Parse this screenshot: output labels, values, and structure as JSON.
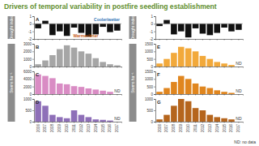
{
  "title": "Drivers of temporal variability in postfire seedling establishment",
  "note": "ND: no data",
  "chart_data": [
    {
      "type": "bar",
      "title": "A",
      "ylabel": "Drought index",
      "color": "#111111",
      "categories": [
        "2006",
        "2007",
        "2008",
        "2009",
        "2010",
        "2011",
        "2012",
        "2013",
        "2014",
        "2015",
        "2016",
        "2017"
      ],
      "values": [
        -0.6,
        0.4,
        -1.5,
        -1.0,
        -1.6,
        -0.5,
        -1.2,
        -1.7,
        -1.4,
        -0.4,
        -1.1,
        -0.9
      ],
      "ylim": [
        -2,
        1
      ],
      "yticks": [
        -2,
        -1,
        0,
        1
      ],
      "tick_labels": "y",
      "annotations": [
        {
          "text": "Cooler/wetter",
          "color": "#2e75b6"
        },
        {
          "text": "Warmer/drier",
          "color": "#c55a11"
        }
      ]
    },
    {
      "type": "bar",
      "title": "B",
      "color": "#a6a6a6",
      "categories": [
        "2006",
        "2007",
        "2008",
        "2009",
        "2010",
        "2011",
        "2012",
        "2013",
        "2014",
        "2015",
        "2016",
        "2017"
      ],
      "values": [
        300,
        800,
        1500,
        2300,
        2800,
        2500,
        2000,
        1700,
        1100,
        600,
        300,
        150
      ],
      "ylim": [
        0,
        3000
      ],
      "yticks": [
        0,
        1000,
        2000,
        3000
      ],
      "tick_labels": "y"
    },
    {
      "type": "bar",
      "title": "C",
      "ylabel": "Stems ha⁻¹",
      "color": "#d98cc4",
      "categories": [
        "2006",
        "2007",
        "2008",
        "2009",
        "2010",
        "2011",
        "2012",
        "2013",
        "2014",
        "2015",
        "2016",
        "2017"
      ],
      "values": [
        5200,
        4800,
        4200,
        2800,
        2600,
        2100,
        1900,
        1500,
        1200,
        900,
        600,
        null
      ],
      "ylim": [
        0,
        6000
      ],
      "yticks": [
        0,
        2000,
        4000,
        6000
      ],
      "tick_labels": "y",
      "annotations": [
        {
          "text": "ND"
        }
      ]
    },
    {
      "type": "bar",
      "title": "D",
      "color": "#8e6fb8",
      "categories": [
        "2006",
        "2007",
        "2008",
        "2009",
        "2010",
        "2011",
        "2012",
        "2013",
        "2014",
        "2015",
        "2016",
        "2017"
      ],
      "values": [
        900,
        700,
        300,
        200,
        150,
        500,
        300,
        200,
        100,
        80,
        50,
        null
      ],
      "ylim": [
        0,
        1000
      ],
      "yticks": [
        0,
        500,
        1000
      ],
      "annotations": [
        {
          "text": "ND"
        }
      ]
    },
    {
      "type": "bar",
      "ylabel": "Drought index",
      "color": "#111111",
      "categories": [
        "2006",
        "2007",
        "2008",
        "2009",
        "2010",
        "2011",
        "2012",
        "2013",
        "2014",
        "2015",
        "2016",
        "2017"
      ],
      "values": [
        -0.3,
        0.5,
        -1.4,
        -1.0,
        -1.8,
        -0.6,
        -1.3,
        -1.5,
        -1.2,
        -0.5,
        -1.0,
        -0.8
      ],
      "ylim": [
        -2,
        1
      ],
      "yticks": [
        -2,
        -1,
        0,
        1
      ],
      "tick_labels": "y"
    },
    {
      "type": "bar",
      "title": "E",
      "color": "#f2a93b",
      "categories": [
        "2006",
        "2007",
        "2008",
        "2009",
        "2010",
        "2011",
        "2012",
        "2013",
        "2014",
        "2015",
        "2016",
        "2017"
      ],
      "values": [
        200,
        500,
        900,
        1300,
        1200,
        1000,
        700,
        500,
        300,
        200,
        100,
        null
      ],
      "ylim": [
        0,
        1500
      ],
      "yticks": [
        0,
        500,
        1000,
        1500
      ],
      "tick_labels": "y",
      "annotations": [
        {
          "text": "ND"
        }
      ]
    },
    {
      "type": "bar",
      "title": "F",
      "ylabel": "Stems ha⁻¹",
      "color": "#e0861f",
      "categories": [
        "2006",
        "2007",
        "2008",
        "2009",
        "2010",
        "2011",
        "2012",
        "2013",
        "2014",
        "2015",
        "2016",
        "2017"
      ],
      "values": [
        150,
        400,
        800,
        1200,
        1000,
        700,
        500,
        400,
        250,
        150,
        80,
        null
      ],
      "ylim": [
        0,
        1500
      ],
      "yticks": [
        0,
        500,
        1000,
        1500
      ],
      "tick_labels": "y",
      "annotations": [
        {
          "text": "ND"
        }
      ]
    },
    {
      "type": "bar",
      "title": "G",
      "color": "#b5651d",
      "categories": [
        "2006",
        "2007",
        "2008",
        "2009",
        "2010",
        "2011",
        "2012",
        "2013",
        "2014",
        "2015",
        "2016",
        "2017"
      ],
      "values": [
        100,
        300,
        700,
        1000,
        900,
        600,
        500,
        300,
        200,
        150,
        100,
        null
      ],
      "ylim": [
        0,
        1000
      ],
      "yticks": [
        0,
        500,
        1000
      ],
      "annotations": [
        {
          "text": "ND"
        }
      ]
    }
  ]
}
